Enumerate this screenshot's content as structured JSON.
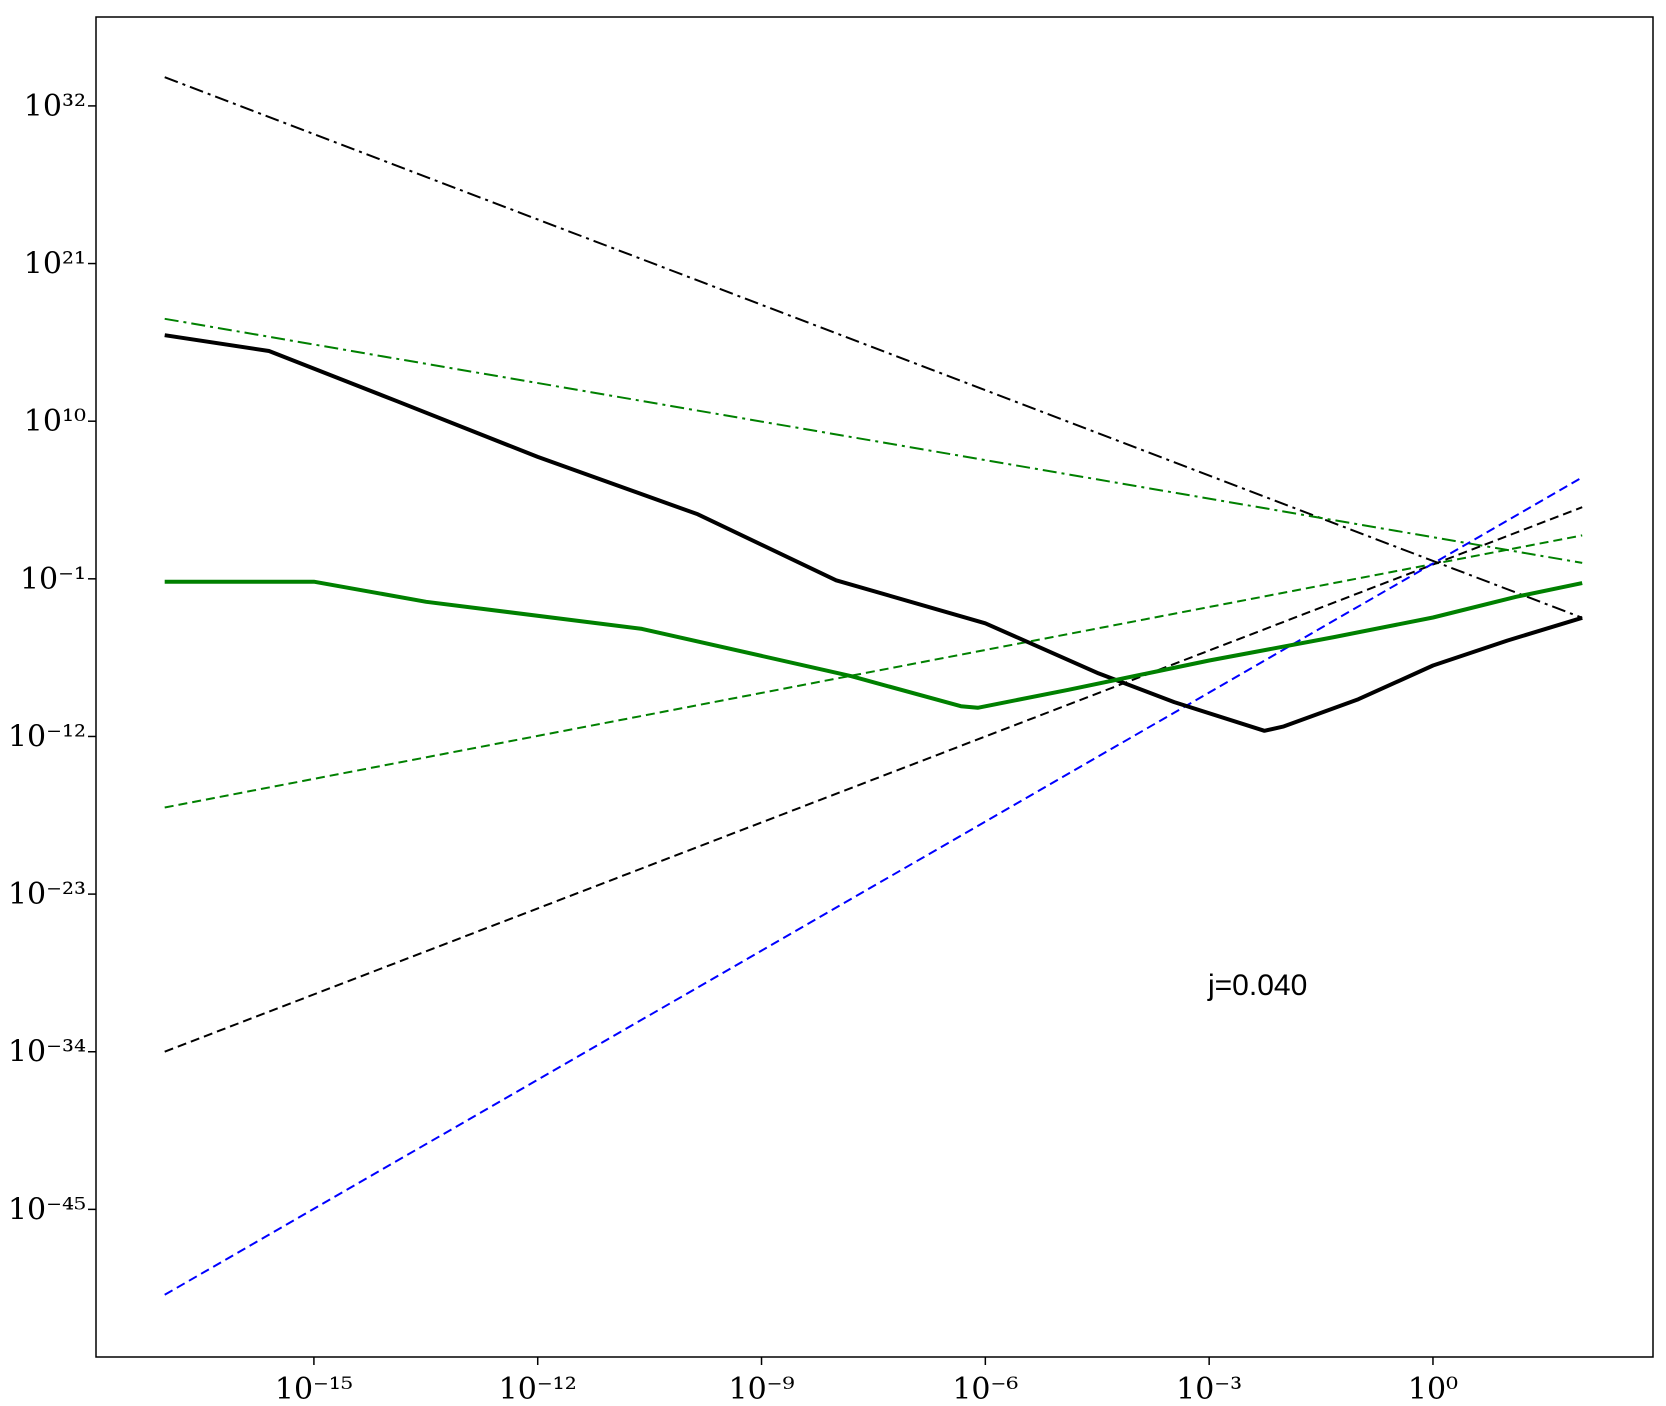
{
  "chart_data": {
    "type": "line",
    "xscale": "log",
    "yscale": "log",
    "xlim": [
      1.2e-18,
      890
    ],
    "ylim": [
      5e-56,
      1.6e+38
    ],
    "xticks": [
      {
        "value": 1e-15,
        "label": "10⁻¹⁵"
      },
      {
        "value": 1e-12,
        "label": "10⁻¹²"
      },
      {
        "value": 1e-09,
        "label": "10⁻⁹"
      },
      {
        "value": 1e-06,
        "label": "10⁻⁶"
      },
      {
        "value": 0.001,
        "label": "10⁻³"
      },
      {
        "value": 1,
        "label": "10⁰"
      }
    ],
    "yticks": [
      {
        "value": 1e+32,
        "label": "10³²"
      },
      {
        "value": 1e+21,
        "label": "10²¹"
      },
      {
        "value": 10000000000.0,
        "label": "10¹⁰"
      },
      {
        "value": 0.1,
        "label": "10⁻¹"
      },
      {
        "value": 1e-12,
        "label": "10⁻¹²"
      },
      {
        "value": 1e-23,
        "label": "10⁻²³"
      },
      {
        "value": 1e-34,
        "label": "10⁻³⁴"
      },
      {
        "value": 1e-45,
        "label": "10⁻⁴⁵"
      }
    ],
    "annotation": "j=0.040",
    "series": [
      {
        "color": "#000000",
        "linestyle": "dashdot",
        "linewidth": 2,
        "x": [
          1e-17,
          100
        ],
        "values": [
          1e+34,
          0.00019
        ]
      },
      {
        "color": "#008000",
        "linestyle": "dashdot",
        "linewidth": 2,
        "x": [
          1e-17,
          100
        ],
        "values": [
          1.4e+17,
          1.3
        ]
      },
      {
        "color": "#008000",
        "linestyle": "dashed",
        "linewidth": 2,
        "x": [
          1e-17,
          100
        ],
        "values": [
          1.1e-17,
          107
        ]
      },
      {
        "color": "#000000",
        "linestyle": "dashed",
        "linewidth": 2,
        "x": [
          1e-17,
          100
        ],
        "values": [
          1e-34,
          10000.0
        ]
      },
      {
        "color": "#0000ff",
        "linestyle": "dashed",
        "linewidth": 2,
        "x": [
          1e-17,
          100
        ],
        "values": [
          1.1e-51,
          1200000.0
        ]
      },
      {
        "color": "#000000",
        "linestyle": "solid",
        "linewidth": 4,
        "x": [
          1e-17,
          2.5e-16,
          1.3e-14,
          1e-12,
          1.4e-10,
          1e-08,
          1e-06,
          3.3e-05,
          0.00034,
          0.0055,
          0.01,
          0.1,
          1,
          10,
          100
        ],
        "values": [
          1e+16,
          790000000000000.0,
          250000000000.0,
          32000000.0,
          3200,
          0.079,
          7.9e-05,
          2.5e-08,
          2.5e-10,
          2.5e-12,
          5e-12,
          4e-10,
          8.9e-08,
          5e-06,
          0.00019
        ]
      },
      {
        "color": "#008000",
        "linestyle": "solid",
        "linewidth": 4,
        "x": [
          1e-17,
          1e-15,
          3.2e-14,
          2.5e-11,
          1.6e-08,
          4.7e-07,
          7.9e-07,
          1.3e-05,
          0.001,
          0.048,
          1,
          13,
          100
        ],
        "values": [
          0.063,
          0.063,
          0.0025,
          3.2e-05,
          1.6e-08,
          1.3e-10,
          1e-10,
          1.8e-09,
          2e-07,
          8.7e-06,
          0.0002,
          0.0056,
          0.05
        ]
      }
    ]
  }
}
